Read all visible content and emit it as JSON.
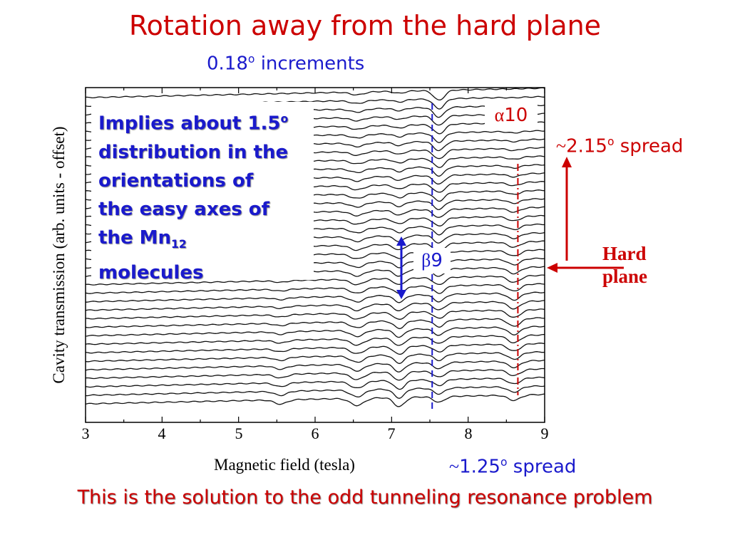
{
  "slide": {
    "title": "Rotation away from the hard plane",
    "subtitle_prefix": "0.18",
    "subtitle_sup": "o",
    "subtitle_suffix": " increments",
    "footer": "This is the solution to the odd tunneling resonance problem"
  },
  "annotation": {
    "line1_prefix": "Implies about 1.5",
    "line1_sup": "o",
    "line2": "distribution in the",
    "line3": "orientations of",
    "line4": "the easy axes of",
    "line5_prefix": "the Mn",
    "line5_sub": "12",
    "line6": "molecules"
  },
  "labels": {
    "alpha_symbol": "α",
    "alpha_number": "10",
    "beta_symbol": "β",
    "beta_number": "9",
    "spread_top_tilde": "~",
    "spread_top_value": "2.15",
    "spread_top_sup": "o",
    "spread_top_word": " spread",
    "spread_bottom_tilde": "~",
    "spread_bottom_value": "1.25",
    "spread_bottom_sup": "o",
    "spread_bottom_word": " spread",
    "hard_plane_line1": "Hard",
    "hard_plane_line2": "plane"
  },
  "colors": {
    "title_red": "#cc0000",
    "annotation_blue": "#1a1acc",
    "axis_black": "#000000"
  },
  "chart_data": {
    "type": "line",
    "xlabel": "Magnetic field (tesla)",
    "ylabel": "Cavity transmission (arb. units - offset)",
    "xlim": [
      3,
      9
    ],
    "xticks": [
      "3",
      "4",
      "5",
      "6",
      "7",
      "8",
      "9"
    ],
    "n_traces": 37,
    "beta9_resonance_field": 7.53,
    "alpha10_resonance_field": 8.65,
    "grid": false,
    "legend": "none"
  }
}
